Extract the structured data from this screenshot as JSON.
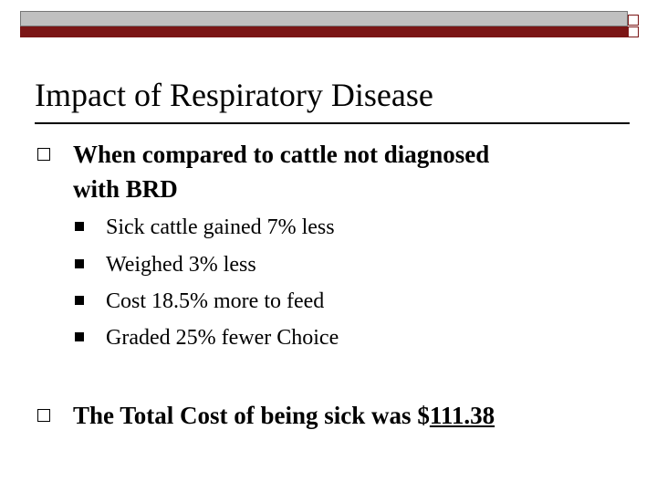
{
  "slide": {
    "title": "Impact of Respiratory Disease",
    "bullets": [
      {
        "line1": "When  compared to cattle not diagnosed",
        "line2": "with BRD",
        "sub_bullets": [
          "Sick cattle gained 7% less",
          "Weighed 3% less",
          "Cost 18.5% more to feed",
          "Graded 25% fewer Choice"
        ]
      },
      {
        "text_prefix": "The Total Cost of being sick was $",
        "text_amount": "111.38"
      }
    ]
  },
  "colors": {
    "band_gray": "#c0c0c0",
    "band_dark_red": "#7b1616"
  },
  "icons": {
    "main_bullet": "hollow-square",
    "sub_bullet": "filled-square"
  }
}
